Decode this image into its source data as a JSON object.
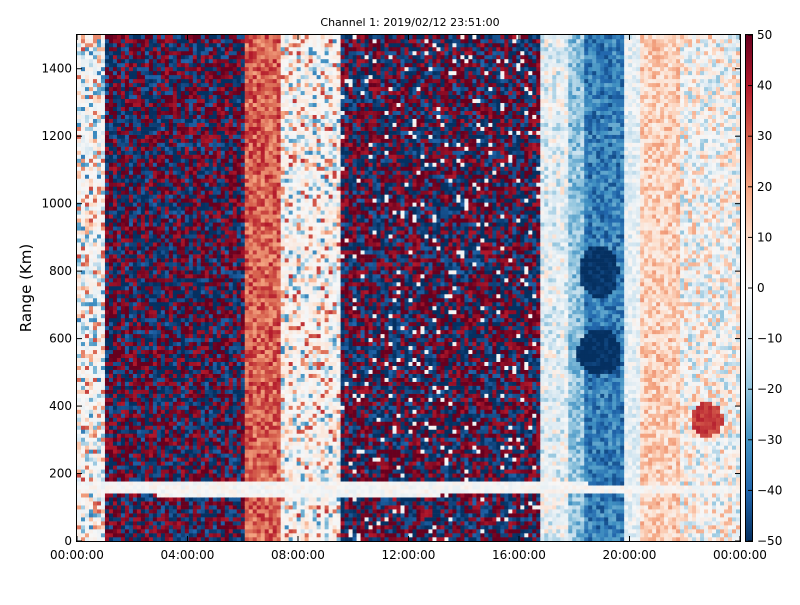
{
  "chart_data": {
    "type": "heatmap",
    "title": "Channel 1: 2019/02/12 23:51:00",
    "xlabel": "",
    "ylabel": "Range (Km)",
    "x_ticks": [
      "00:00:00",
      "04:00:00",
      "08:00:00",
      "12:00:00",
      "16:00:00",
      "20:00:00",
      "00:00:00"
    ],
    "x_range_hours": [
      0,
      24
    ],
    "y_ticks": [
      0,
      200,
      400,
      600,
      800,
      1000,
      1200,
      1400
    ],
    "ylim": [
      0,
      1500
    ],
    "colorbar": {
      "min": -50,
      "max": 50,
      "ticks": [
        -50,
        -40,
        -30,
        -20,
        -10,
        0,
        10,
        20,
        30,
        40,
        50
      ],
      "colormap": "RdBu_r",
      "low_color": "#053061",
      "mid_color": "#f7f7f7",
      "high_color": "#67001f"
    },
    "bands": [
      {
        "start_hour": 0.0,
        "end_hour": 1.0,
        "description": "near-zero with scattered mixed values",
        "mean": 0,
        "noise": 35,
        "density": 0.55
      },
      {
        "start_hour": 1.0,
        "end_hour": 6.1,
        "description": "strong mixed positive/negative noise",
        "mean": 0,
        "noise": 60,
        "density": 1.0
      },
      {
        "start_hour": 6.1,
        "end_hour": 7.4,
        "description": "positive values",
        "mean": 30,
        "noise": 10,
        "density": 1.0
      },
      {
        "start_hour": 7.4,
        "end_hour": 9.5,
        "description": "near-zero with scattered mixed values",
        "mean": 2,
        "noise": 35,
        "density": 0.5
      },
      {
        "start_hour": 9.5,
        "end_hour": 16.8,
        "description": "strong mixed positive/negative noise",
        "mean": 0,
        "noise": 60,
        "density": 0.95
      },
      {
        "start_hour": 16.8,
        "end_hour": 17.8,
        "description": "near-zero, slightly negative",
        "mean": -5,
        "noise": 15,
        "density": 0.6
      },
      {
        "start_hour": 17.8,
        "end_hour": 18.3,
        "description": "weak negative",
        "mean": -20,
        "noise": 10,
        "density": 1.0
      },
      {
        "start_hour": 18.3,
        "end_hour": 19.8,
        "description": "negative values",
        "mean": -35,
        "noise": 10,
        "density": 1.0
      },
      {
        "start_hour": 19.8,
        "end_hour": 20.4,
        "description": "near-zero",
        "mean": -5,
        "noise": 8,
        "density": 1.0
      },
      {
        "start_hour": 20.4,
        "end_hour": 21.8,
        "description": "weak positive",
        "mean": 12,
        "noise": 10,
        "density": 1.0
      },
      {
        "start_hour": 21.8,
        "end_hour": 24.0,
        "description": "weak mixed",
        "mean": 0,
        "noise": 20,
        "density": 0.8
      }
    ],
    "features": [
      {
        "hour": 18.9,
        "range_km": 800,
        "value": -50,
        "extent_hours": 0.7,
        "extent_km": 80
      },
      {
        "hour": 18.9,
        "range_km": 560,
        "value": -50,
        "extent_hours": 0.8,
        "extent_km": 70
      },
      {
        "hour": 22.8,
        "range_km": 360,
        "value": 35,
        "extent_hours": 0.6,
        "extent_km": 50
      },
      {
        "hour": 8.0,
        "range_km": 155,
        "value": 0,
        "extent_hours": 18.0,
        "extent_km": 20
      }
    ]
  }
}
